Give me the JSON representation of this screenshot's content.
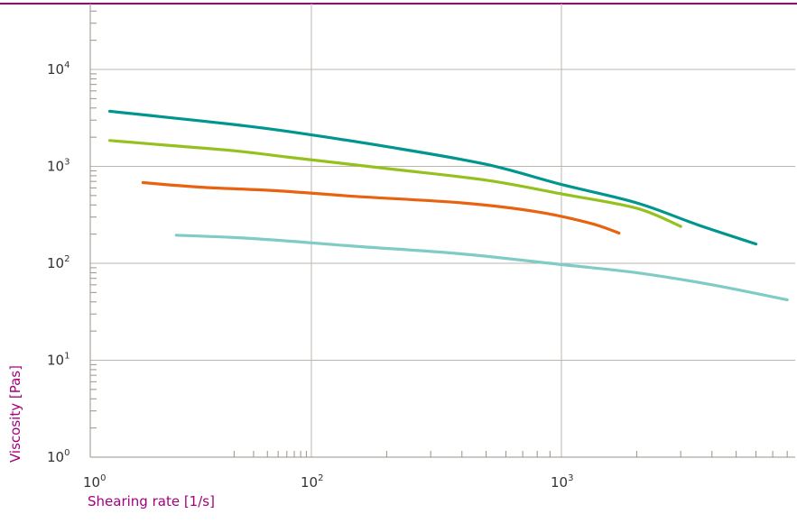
{
  "colors": {
    "top_rule": "#a3007d",
    "axis_label": "#a3007d",
    "grid": "#bdb5ad",
    "axis": "#9a918a",
    "tick_text": "#333333"
  },
  "chart_data": {
    "type": "line",
    "title": "",
    "xlabel": "Shearing rate [1/s]",
    "ylabel": "Viscosity [Pas]",
    "x_scale": "log",
    "y_scale": "log",
    "x_ticks": [
      {
        "value": 1,
        "base": "10",
        "exp": "0"
      },
      {
        "value": 100,
        "base": "10",
        "exp": "2"
      },
      {
        "value": 1000,
        "base": "10",
        "exp": "3"
      }
    ],
    "y_ticks": [
      {
        "value": 1,
        "base": "10",
        "exp": "0"
      },
      {
        "value": 10,
        "base": "10",
        "exp": "1"
      },
      {
        "value": 100,
        "base": "10",
        "exp": "2"
      },
      {
        "value": 1000,
        "base": "10",
        "exp": "3"
      },
      {
        "value": 10000,
        "base": "10",
        "exp": "4"
      }
    ],
    "grid": true,
    "series": [
      {
        "color": "#00958f",
        "points": [
          [
            1.5,
            3700
          ],
          [
            5,
            3200
          ],
          [
            20,
            2700
          ],
          [
            60,
            2300
          ],
          [
            200,
            1600
          ],
          [
            500,
            1050
          ],
          [
            1000,
            650
          ],
          [
            2000,
            420
          ],
          [
            3500,
            250
          ],
          [
            6000,
            158
          ]
        ]
      },
      {
        "color": "#95c11f",
        "points": [
          [
            1.5,
            1850
          ],
          [
            5,
            1650
          ],
          [
            20,
            1450
          ],
          [
            60,
            1250
          ],
          [
            200,
            950
          ],
          [
            500,
            720
          ],
          [
            1000,
            520
          ],
          [
            2000,
            370
          ],
          [
            3000,
            240
          ]
        ]
      },
      {
        "color": "#e8620f",
        "points": [
          [
            3,
            680
          ],
          [
            10,
            610
          ],
          [
            50,
            560
          ],
          [
            150,
            490
          ],
          [
            400,
            420
          ],
          [
            800,
            340
          ],
          [
            1300,
            260
          ],
          [
            1700,
            205
          ]
        ]
      },
      {
        "color": "#7fcbc6",
        "points": [
          [
            6,
            195
          ],
          [
            30,
            180
          ],
          [
            150,
            150
          ],
          [
            400,
            125
          ],
          [
            1000,
            97
          ],
          [
            2000,
            80
          ],
          [
            4000,
            60
          ],
          [
            8000,
            42
          ]
        ]
      }
    ]
  }
}
